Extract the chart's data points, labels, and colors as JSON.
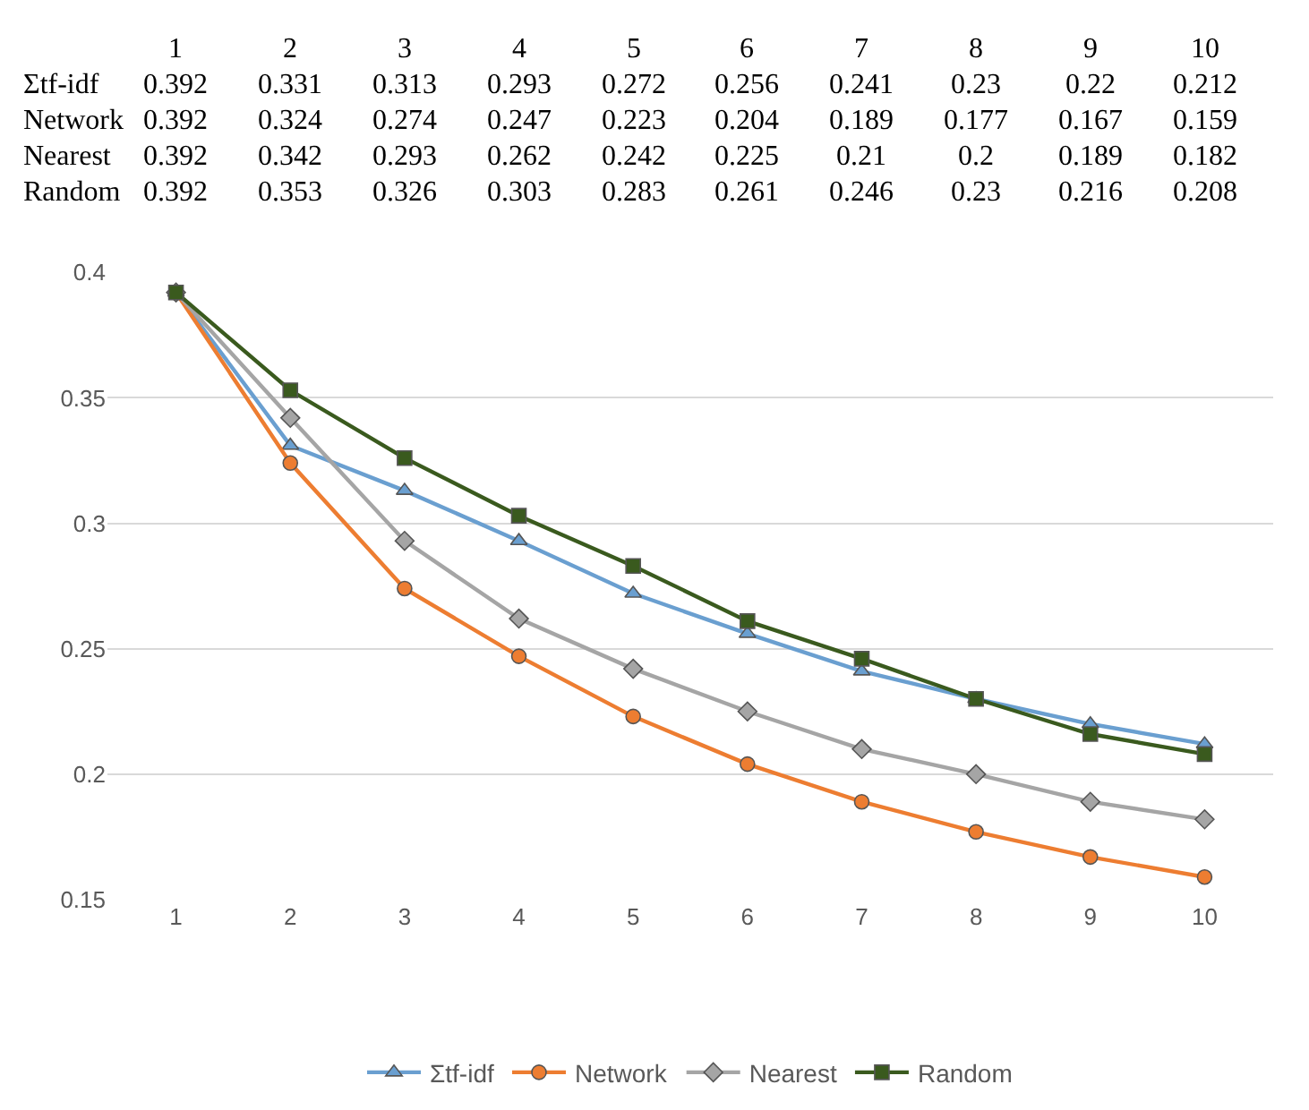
{
  "chart_data": {
    "type": "line",
    "categories": [
      "1",
      "2",
      "3",
      "4",
      "5",
      "6",
      "7",
      "8",
      "9",
      "10"
    ],
    "series": [
      {
        "name": "Σtf-idf",
        "color": "#6a9fd0",
        "marker": "triangle",
        "values": [
          0.392,
          0.331,
          0.313,
          0.293,
          0.272,
          0.256,
          0.241,
          0.23,
          0.22,
          0.212
        ]
      },
      {
        "name": "Network",
        "color": "#ed7d31",
        "marker": "circle",
        "values": [
          0.392,
          0.324,
          0.274,
          0.247,
          0.223,
          0.204,
          0.189,
          0.177,
          0.167,
          0.159
        ]
      },
      {
        "name": "Nearest",
        "color": "#a5a5a5",
        "marker": "diamond",
        "values": [
          0.392,
          0.342,
          0.293,
          0.262,
          0.242,
          0.225,
          0.21,
          0.2,
          0.189,
          0.182
        ]
      },
      {
        "name": "Random",
        "color": "#3a5a1e",
        "marker": "square",
        "values": [
          0.392,
          0.353,
          0.326,
          0.303,
          0.283,
          0.261,
          0.246,
          0.23,
          0.216,
          0.208
        ]
      }
    ],
    "ylim": [
      0.15,
      0.4
    ],
    "yticks": [
      0.15,
      0.2,
      0.25,
      0.3,
      0.35,
      0.4
    ],
    "grid": "y",
    "legend": "bottom",
    "data_labels": true
  }
}
